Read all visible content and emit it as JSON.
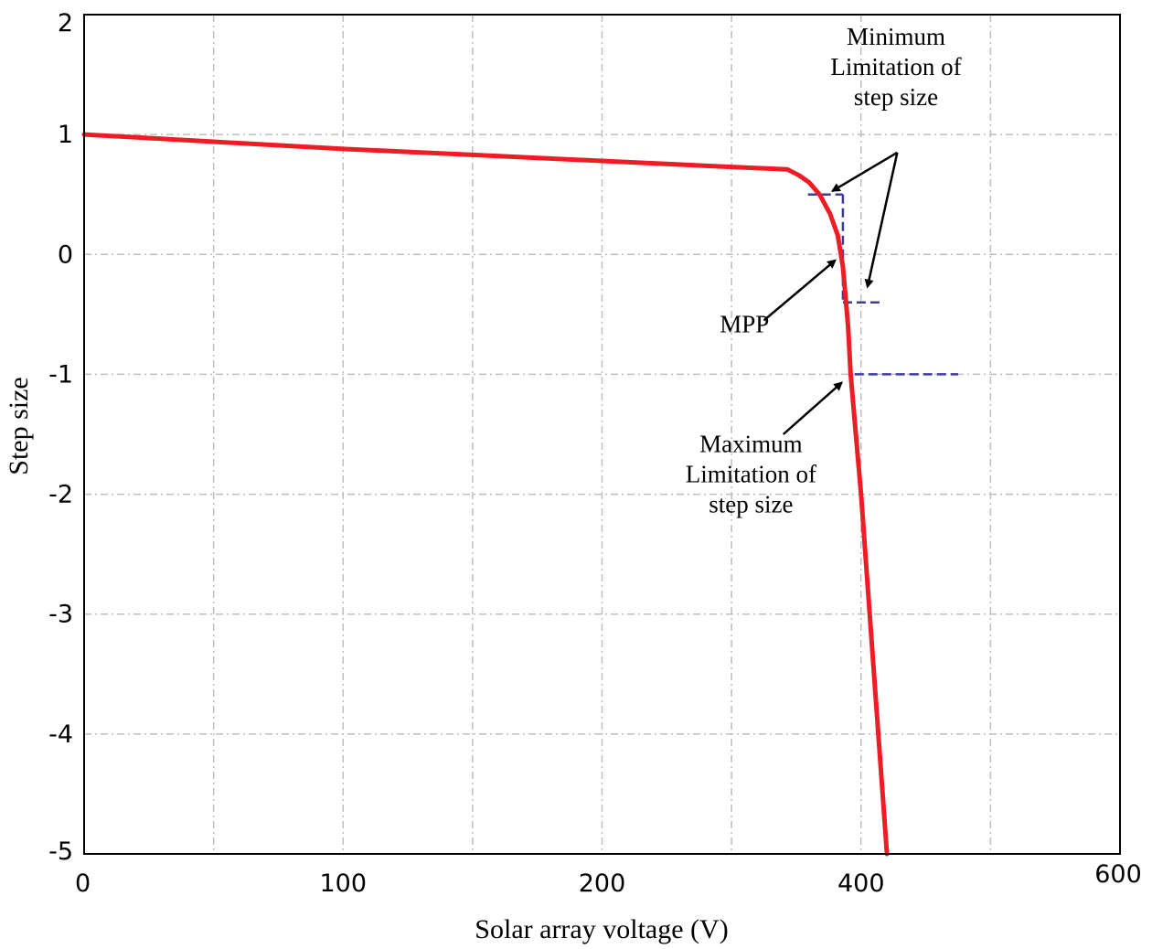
{
  "chart_data": {
    "type": "line",
    "title": "",
    "xlabel": "Solar array voltage (V)",
    "ylabel": "Step size",
    "xlim": [
      0,
      600
    ],
    "ylim": [
      -5,
      2
    ],
    "grid": true,
    "x_ticks": [
      {
        "value": 0,
        "label": "0"
      },
      {
        "value": 200,
        "label": "100"
      },
      {
        "value": 400,
        "label": "200"
      },
      {
        "value": 600,
        "label": "400"
      },
      {
        "value": 800,
        "label": "600"
      }
    ],
    "x_grid_values": [
      100,
      200,
      300,
      400,
      500,
      600,
      700,
      800
    ],
    "y_ticks": [
      {
        "value": 2,
        "label": "2"
      },
      {
        "value": 1,
        "label": "1"
      },
      {
        "value": 0,
        "label": "0"
      },
      {
        "value": -1,
        "label": "-1"
      },
      {
        "value": -2,
        "label": "-2"
      },
      {
        "value": -3,
        "label": "-3"
      },
      {
        "value": -4,
        "label": "-4"
      },
      {
        "value": -5,
        "label": "-5"
      }
    ],
    "x_axis_units": 800,
    "series": [
      {
        "name": "step size curve",
        "color": "#ee1c25",
        "x": [
          0,
          100,
          200,
          300,
          400,
          500,
          543,
          552,
          560,
          568,
          576,
          582,
          586,
          588,
          590,
          592,
          596,
          600,
          620
        ],
        "y": [
          1.0,
          0.94,
          0.88,
          0.83,
          0.78,
          0.73,
          0.71,
          0.66,
          0.6,
          0.5,
          0.34,
          0.16,
          -0.1,
          -0.35,
          -0.6,
          -1.0,
          -1.5,
          -2.0,
          -5.0
        ]
      }
    ],
    "limit_lines": [
      {
        "name": "minimum-limit-top",
        "x": [
          559,
          586
        ],
        "y": [
          0.5,
          0.5
        ],
        "color": "#3b3ba0"
      },
      {
        "name": "minimum-limit-vertical",
        "x": [
          586,
          586
        ],
        "y": [
          0.5,
          -0.4
        ],
        "color": "#3b3ba0"
      },
      {
        "name": "minimum-limit-bottom",
        "x": [
          586,
          615
        ],
        "y": [
          -0.4,
          -0.4
        ],
        "color": "#3b3ba0"
      },
      {
        "name": "maximum-limit",
        "x": [
          595,
          675
        ],
        "y": [
          -1.0,
          -1.0
        ],
        "color": "#3b3ba0"
      }
    ],
    "annotations": [
      {
        "name": "minimum-limitation",
        "lines": [
          "Minimum",
          "Limitation of",
          "step size"
        ],
        "text_x": 627,
        "text_y": 1.75,
        "arrows": [
          {
            "from": [
              628,
              0.85
            ],
            "to": [
              578,
              0.53
            ]
          },
          {
            "from": [
              628,
              0.85
            ],
            "to": [
              605,
              -0.27
            ]
          }
        ]
      },
      {
        "name": "mpp",
        "lines": [
          "MPP"
        ],
        "text_x": 510,
        "text_y": -0.65,
        "arrows": [
          {
            "from": [
              525,
              -0.55
            ],
            "to": [
              580,
              -0.05
            ]
          }
        ]
      },
      {
        "name": "maximum-limitation",
        "lines": [
          "Maximum",
          "Limitation of",
          "step size"
        ],
        "text_x": 515,
        "text_y": -1.65,
        "arrows": [
          {
            "from": [
              540,
              -1.5
            ],
            "to": [
              585,
              -1.07
            ]
          }
        ]
      }
    ]
  }
}
